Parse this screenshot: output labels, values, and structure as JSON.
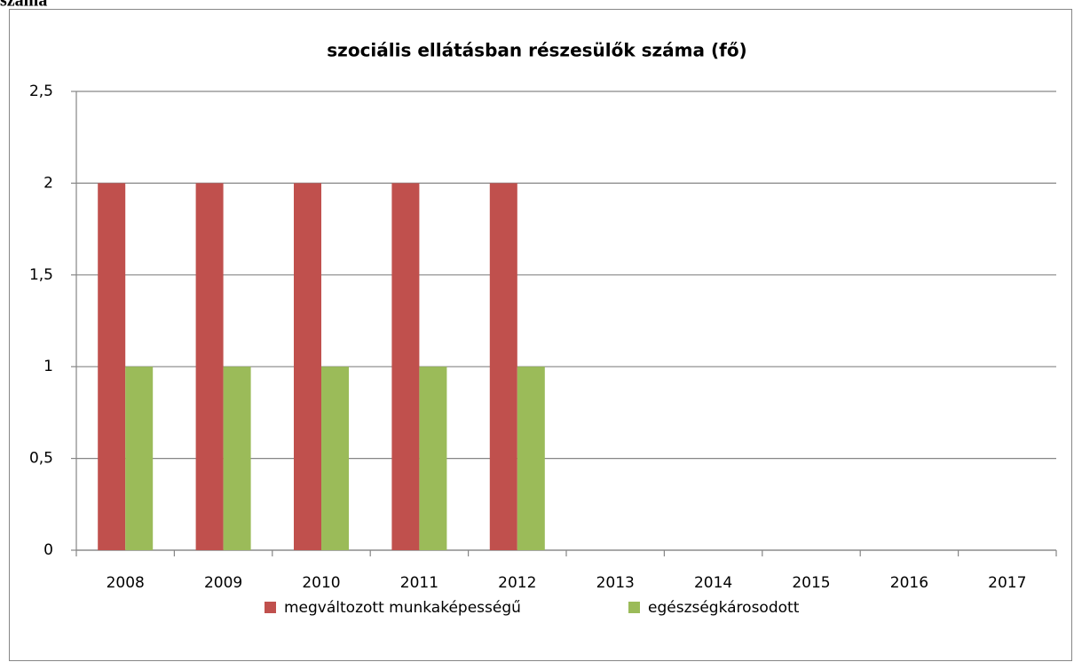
{
  "heading": "száma",
  "chart_data": {
    "type": "bar",
    "title": "szociális ellátásban részesülők száma (fő)",
    "categories": [
      "2008",
      "2009",
      "2010",
      "2011",
      "2012",
      "2013",
      "2014",
      "2015",
      "2016",
      "2017"
    ],
    "series": [
      {
        "name": "megváltozott munkaképességű",
        "color": "#c0504d",
        "values": [
          2,
          2,
          2,
          2,
          2,
          null,
          null,
          null,
          null,
          null
        ]
      },
      {
        "name": "egészségkárosodott",
        "color": "#9bbb59",
        "values": [
          1,
          1,
          1,
          1,
          1,
          null,
          null,
          null,
          null,
          null
        ]
      }
    ],
    "ylim": [
      0,
      2.5
    ],
    "yticks": [
      0,
      {
        "value": 0.5,
        "label": "0,5"
      },
      1,
      {
        "value": 1.5,
        "label": "1,5"
      },
      2,
      {
        "value": 2.5,
        "label": "2,5"
      }
    ],
    "grid": true,
    "legend": "bottom"
  }
}
